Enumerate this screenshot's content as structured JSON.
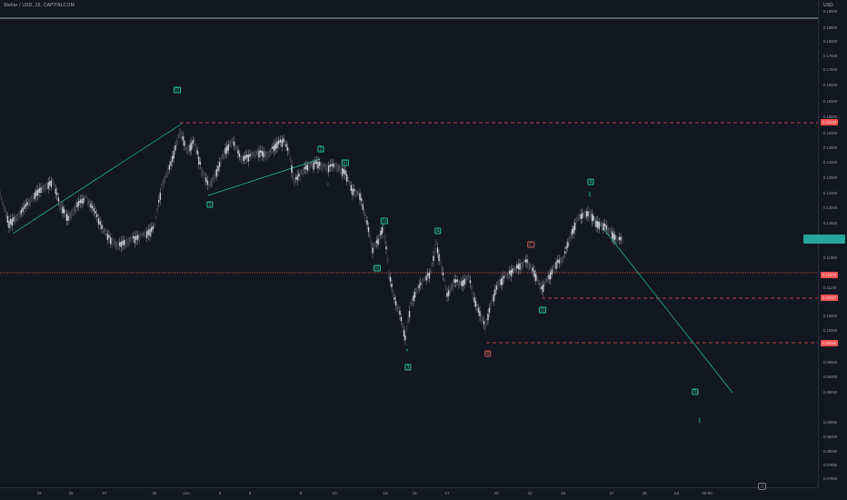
{
  "header": {
    "symbol": "Stellar / USD, 15, CAPITALCOM",
    "currency": "USD"
  },
  "price_axis": {
    "ticks": [
      "0.19000",
      "0.18500",
      "0.18000",
      "0.17500",
      "0.17000",
      "0.16500",
      "0.16000",
      "0.15500",
      "0.15000",
      "0.14600",
      "0.14200",
      "0.13800",
      "0.13400",
      "0.13000",
      "0.12600",
      "0.11800",
      "0.11100",
      "0.10500",
      "0.10000",
      "0.09600",
      "0.09300",
      "0.09050",
      "0.08850",
      "0.08300",
      "0.08050",
      "0.07850",
      "0.07600"
    ],
    "badges": [
      {
        "label": "0.15233",
        "color": "#ff5252"
      },
      {
        "label": "0.11579",
        "color": "#ff5252"
      },
      {
        "label": "0.10027",
        "color": "#ff5252"
      },
      {
        "label": "0.09090",
        "color": "#ff5252"
      },
      {
        "label": "",
        "color": "#26a69a"
      }
    ]
  },
  "time_axis": {
    "labels": [
      "23",
      "25",
      "27",
      "30",
      "Jun",
      "3",
      "5",
      "8",
      "10",
      "13",
      "15",
      "17",
      "20",
      "22",
      "24",
      "27",
      "29",
      "Jul",
      "18:00"
    ]
  },
  "wave_labels": [
    {
      "text": "D",
      "style": "green"
    },
    {
      "text": "2",
      "style": "green"
    },
    {
      "text": "1",
      "style": "green"
    },
    {
      "text": "iii",
      "style": "green"
    },
    {
      "text": "i",
      "style": "plain"
    },
    {
      "text": "iv",
      "style": "green"
    },
    {
      "text": "iii",
      "style": "green"
    },
    {
      "text": "A",
      "style": "green"
    },
    {
      "text": "C",
      "style": "red"
    },
    {
      "text": "4",
      "style": "green"
    },
    {
      "text": "E",
      "style": "plain"
    },
    {
      "text": "D",
      "style": "green"
    },
    {
      "text": "v",
      "style": "plain"
    },
    {
      "text": "3",
      "style": "green"
    },
    {
      "text": "B",
      "style": "red"
    },
    {
      "text": "5",
      "style": "green"
    },
    {
      "text": "E",
      "style": "plain"
    }
  ],
  "colors": {
    "background": "#131722",
    "candle_up": "#d1d4dc",
    "trendline": "#26c6a0",
    "level_line": "#ff5252",
    "price_line": "#ff5252"
  }
}
